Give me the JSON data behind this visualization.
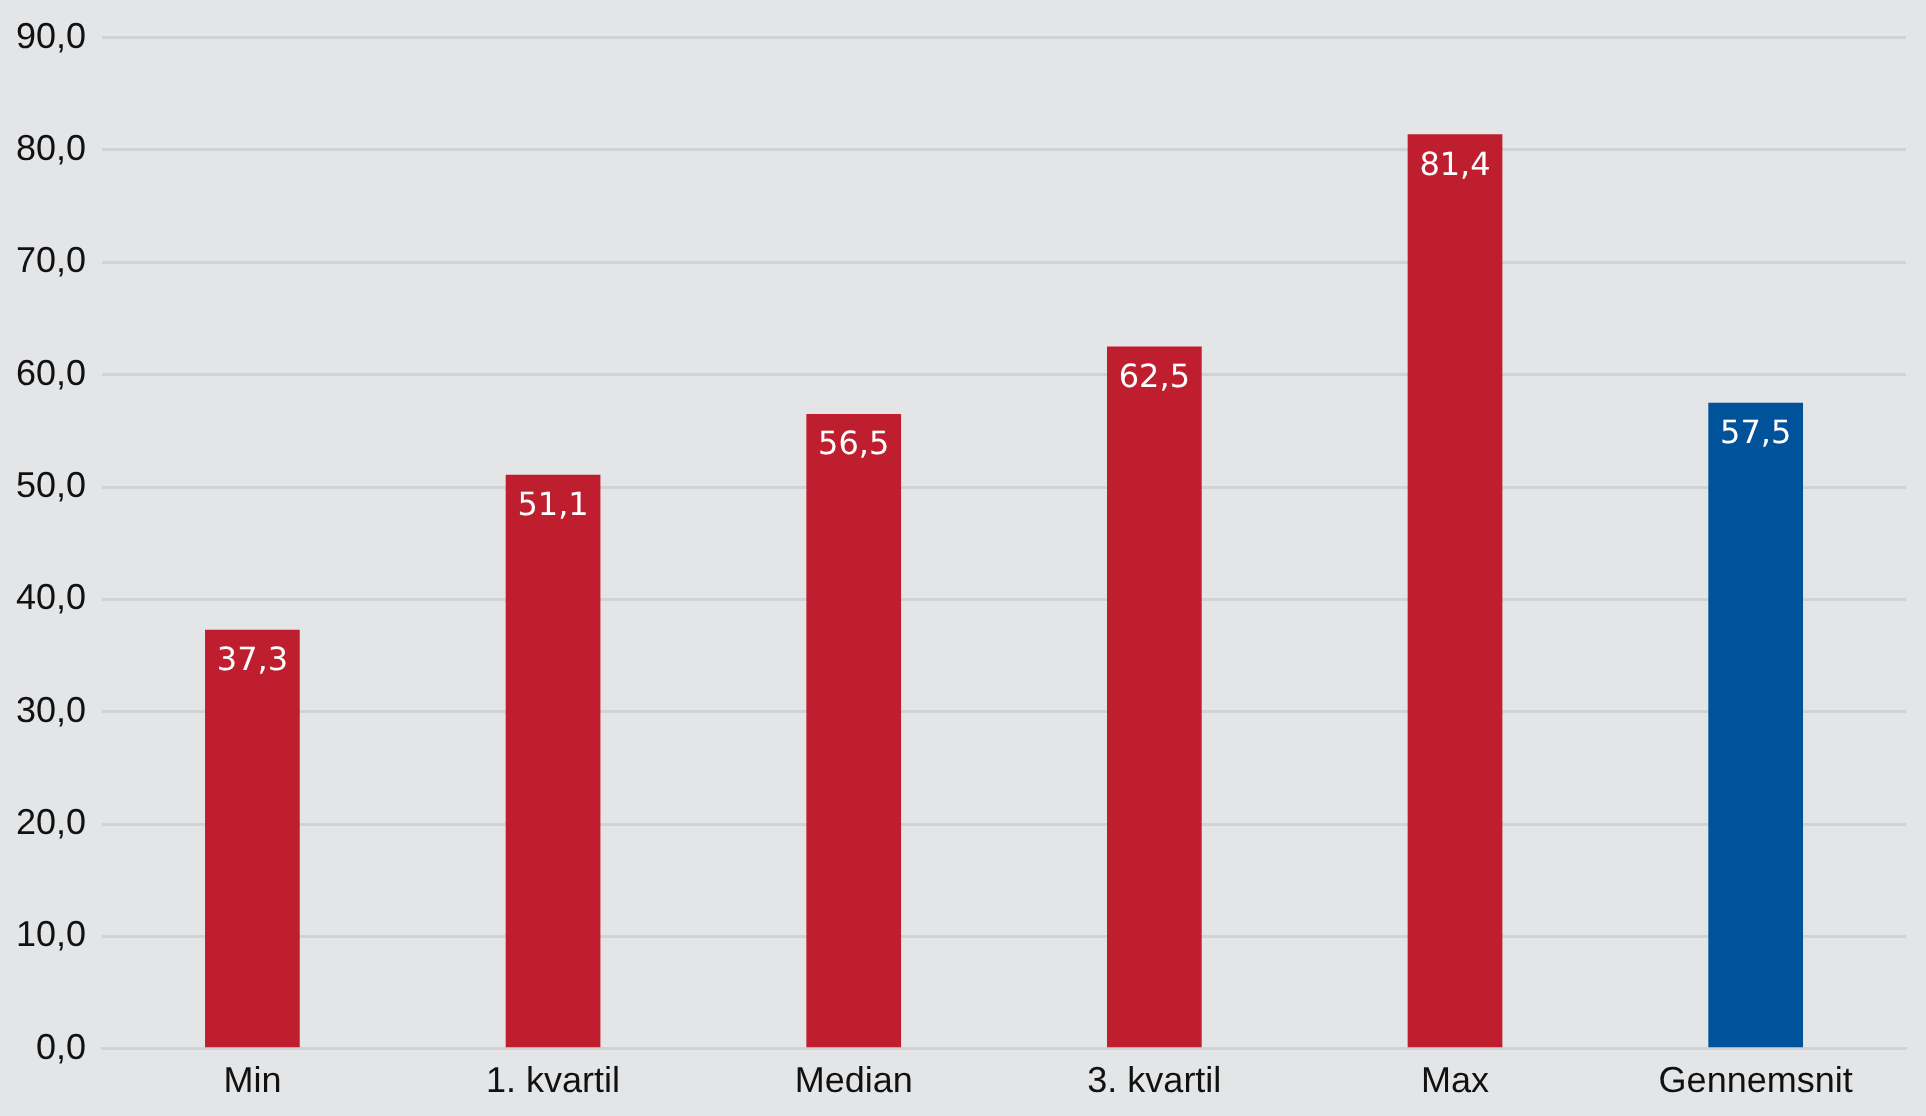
{
  "chart_data": {
    "type": "bar",
    "categories": [
      "Min",
      "1. kvartil",
      "Median",
      "3. kvartil",
      "Max",
      "Gennemsnit"
    ],
    "values": [
      37.3,
      51.1,
      56.5,
      62.5,
      81.4,
      57.5
    ],
    "colors": [
      "#be1e2d",
      "#be1e2d",
      "#be1e2d",
      "#be1e2d",
      "#be1e2d",
      "#00529b"
    ],
    "value_labels": [
      "37,3",
      "51,1",
      "56,5",
      "62,5",
      "81,4",
      "57,5"
    ],
    "ylim": [
      0,
      90
    ],
    "yticks": [
      {
        "value": 0,
        "label": "0,0"
      },
      {
        "value": 10,
        "label": "10,0"
      },
      {
        "value": 20,
        "label": "20,0"
      },
      {
        "value": 30,
        "label": "30,0"
      },
      {
        "value": 40,
        "label": "40,0"
      },
      {
        "value": 50,
        "label": "50,0"
      },
      {
        "value": 60,
        "label": "60,0"
      },
      {
        "value": 70,
        "label": "70,0"
      },
      {
        "value": 80,
        "label": "80,0"
      },
      {
        "value": 90,
        "label": "90,0"
      }
    ],
    "grid": "y",
    "legend": false
  }
}
